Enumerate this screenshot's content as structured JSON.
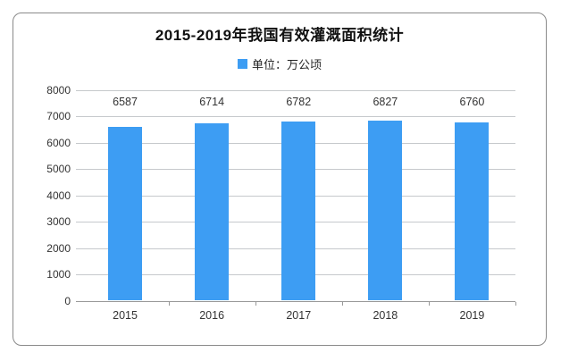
{
  "title": "2015-2019年我国有效灌溉面积统计",
  "legend": {
    "label": "单位：万公顷",
    "marker_color": "#3d9df3"
  },
  "chart_data": {
    "type": "bar",
    "title": "2015-2019年我国有效灌溉面积统计",
    "categories": [
      "2015",
      "2016",
      "2017",
      "2018",
      "2019"
    ],
    "values": [
      6587,
      6714,
      6782,
      6827,
      6760
    ],
    "series_name": "单位：万公顷",
    "xlabel": "",
    "ylabel": "",
    "ylim": [
      0,
      8000
    ],
    "yticks": [
      0,
      1000,
      2000,
      3000,
      4000,
      5000,
      6000,
      7000,
      8000
    ],
    "grid": true,
    "legend_position": "top-center",
    "value_labels": true
  },
  "colors": {
    "bar": "#3d9df3",
    "gridline": "#c6c9cc",
    "axis": "#999999",
    "text": "#333333",
    "title_text": "#111111",
    "card_border": "#8a8a8a",
    "background": "#ffffff"
  }
}
